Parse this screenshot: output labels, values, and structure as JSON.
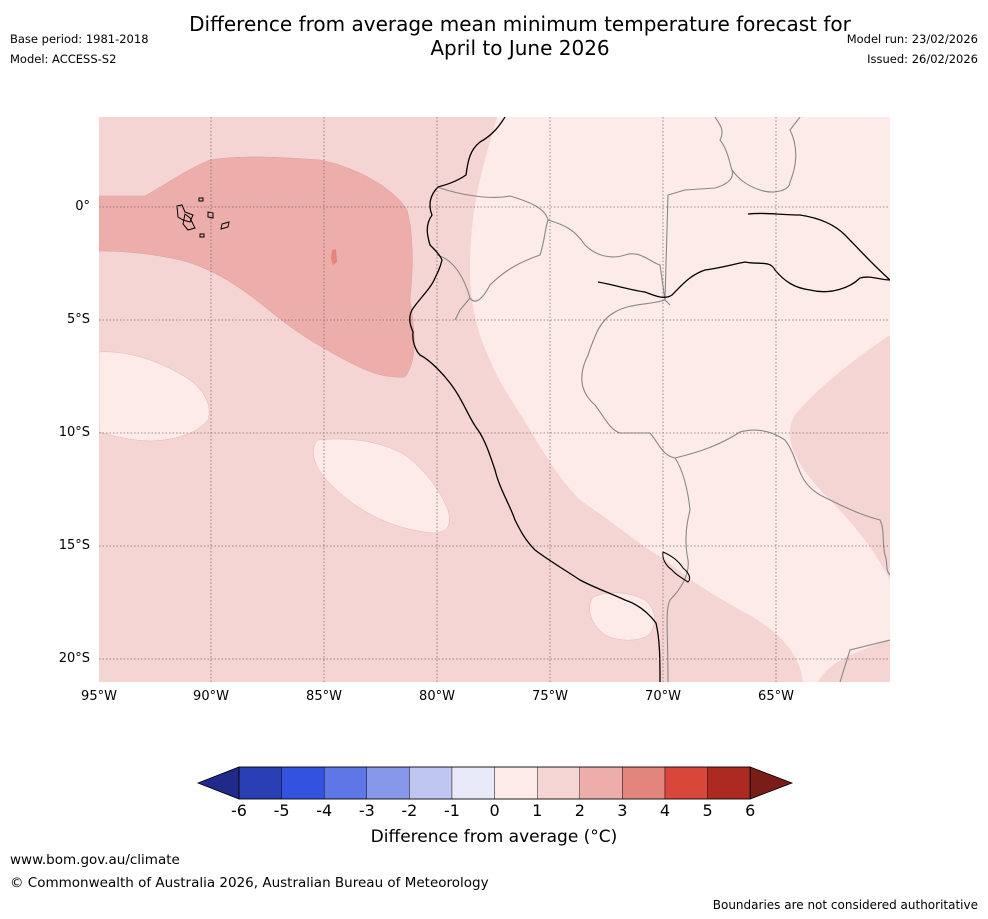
{
  "title": {
    "line1": "Difference from average mean minimum temperature forecast for",
    "line2": "April to June 2026"
  },
  "meta_left": {
    "base_period": "Base period: 1981-2018",
    "model": "Model: ACCESS-S2"
  },
  "meta_right": {
    "model_run": "Model run: 23/02/2026",
    "issued": "Issued: 26/02/2026"
  },
  "map": {
    "lat_labels": [
      "0°",
      "5°S",
      "10°S",
      "15°S",
      "20°S"
    ],
    "lon_labels": [
      "95°W",
      "90°W",
      "85°W",
      "80°W",
      "75°W",
      "70°W",
      "65°W"
    ]
  },
  "colorbar": {
    "ticks": [
      "-6",
      "-5",
      "-4",
      "-3",
      "-2",
      "-1",
      "0",
      "1",
      "2",
      "3",
      "4",
      "5",
      "6"
    ],
    "colors": [
      "#1f2a8a",
      "#2b3fb5",
      "#3352e0",
      "#5f77e6",
      "#8797ea",
      "#c0c6f2",
      "#e8eaf9",
      "#fcebe9",
      "#f5d5d3",
      "#edaeab",
      "#e4857d",
      "#d9473b",
      "#ac2a22",
      "#7a1c18"
    ],
    "label": "Difference from average (°C)"
  },
  "footer": {
    "url": "www.bom.gov.au/climate",
    "copyright": "© Commonwealth of Australia 2026, Australian Bureau of Meteorology",
    "disclaimer": "Boundaries are not considered authoritative"
  }
}
